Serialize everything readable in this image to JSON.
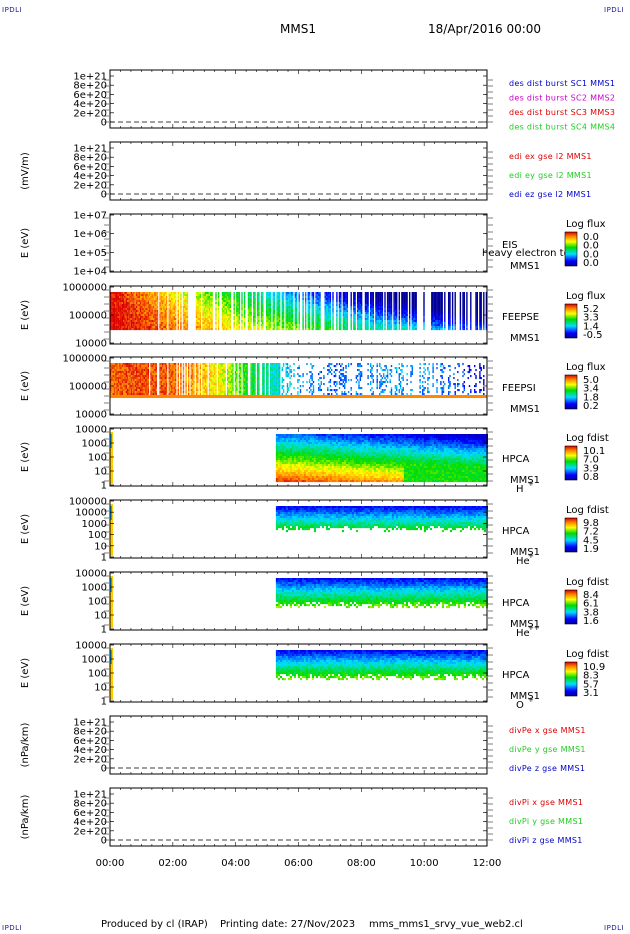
{
  "header": {
    "corner_label": "IPDLI",
    "spacecraft": "MMS1",
    "datetime": "18/Apr/2016 00:00"
  },
  "footer": {
    "produced_by": "Produced by cl (IRAP)",
    "printing_date": "Printing date: 27/Nov/2023",
    "filename": "mms_mms1_srvy_vue_web2.cl"
  },
  "colors": {
    "red": "#dd0000",
    "green": "#22cc22",
    "blue": "#0000cc",
    "magenta": "#cc00cc"
  },
  "chart_data": {
    "type": "heatmap",
    "x_ticks": [
      "00:00",
      "02:00",
      "04:00",
      "06:00",
      "08:00",
      "10:00",
      "12:00"
    ],
    "x_range_hours": [
      0,
      12
    ],
    "panels": [
      {
        "kind": "line",
        "ylabel": "",
        "yticks": [
          "1e+21",
          "8e+20",
          "6e+20",
          "4e+20",
          "2e+20",
          "0"
        ],
        "legend": [
          {
            "text": "des dist burst SC1 MMS1",
            "color": "#0000cc"
          },
          {
            "text": "des dist burst SC2 MMS2",
            "color": "#cc00cc"
          },
          {
            "text": "des dist burst SC3 MMS3",
            "color": "#dd0000"
          },
          {
            "text": "des dist burst SC4 MMS4",
            "color": "#22cc22"
          }
        ]
      },
      {
        "kind": "line",
        "ylabel": "(mV/m)",
        "yticks": [
          "1e+21",
          "8e+20",
          "6e+20",
          "4e+20",
          "2e+20",
          "0"
        ],
        "legend": [
          {
            "text": "edi ex gse l2 MMS1",
            "color": "#dd0000"
          },
          {
            "text": "edi ey gse l2 MMS1",
            "color": "#22cc22"
          },
          {
            "text": "edi ez gse l2 MMS1",
            "color": "#0000cc"
          }
        ]
      },
      {
        "kind": "empty_spec",
        "ylabel": "E (eV)",
        "yticks": [
          "1e+07",
          "1e+06",
          "1e+05",
          "1e+04"
        ],
        "instrument": "EIS",
        "sc": "MMS1",
        "extra": "heavy electron to",
        "cbar_title": "Log flux",
        "cbar_ticks": [
          "0.0",
          "0.0",
          "0.0",
          "0.0"
        ]
      },
      {
        "kind": "feeps",
        "ylabel": "E (eV)",
        "yticks": [
          "1000000",
          "100000",
          "10000"
        ],
        "instrument": "FEEPSE",
        "sc": "MMS1",
        "cbar_title": "Log flux",
        "cbar_ticks": [
          "5.2",
          "3.3",
          "1.4",
          "-0.5"
        ]
      },
      {
        "kind": "feeps",
        "ylabel": "E (eV)",
        "yticks": [
          "1000000",
          "100000",
          "10000"
        ],
        "instrument": "FEEPSI",
        "sc": "MMS1",
        "cbar_title": "Log flux",
        "cbar_ticks": [
          "5.0",
          "3.4",
          "1.8",
          "0.2"
        ]
      },
      {
        "kind": "hpca",
        "ylabel": "E (eV)",
        "yticks": [
          "10000",
          "1000",
          "100",
          "10",
          "1"
        ],
        "instrument": "HPCA",
        "sc": "MMS1",
        "species": "H",
        "charge": "+",
        "cbar_title": "Log fdist",
        "cbar_ticks": [
          "10.1",
          "7.0",
          "3.9",
          "0.8"
        ]
      },
      {
        "kind": "hpca",
        "ylabel": "E (eV)",
        "yticks": [
          "100000",
          "10000",
          "1000",
          "100",
          "10",
          "1"
        ],
        "instrument": "HPCA",
        "sc": "MMS1",
        "species": "He",
        "charge": "+",
        "cbar_title": "Log fdist",
        "cbar_ticks": [
          "9.8",
          "7.2",
          "4.5",
          "1.9"
        ]
      },
      {
        "kind": "hpca",
        "ylabel": "E (eV)",
        "yticks": [
          "10000",
          "1000",
          "100",
          "10",
          "1"
        ],
        "instrument": "HPCA",
        "sc": "MMS1",
        "species": "He",
        "charge": "++",
        "cbar_title": "Log fdist",
        "cbar_ticks": [
          "8.4",
          "6.1",
          "3.8",
          "1.6"
        ]
      },
      {
        "kind": "hpca",
        "ylabel": "E (eV)",
        "yticks": [
          "10000",
          "1000",
          "100",
          "10",
          "1"
        ],
        "instrument": "HPCA",
        "sc": "MMS1",
        "species": "O",
        "charge": "+",
        "cbar_title": "Log fdist",
        "cbar_ticks": [
          "10.9",
          "8.3",
          "5.7",
          "3.1"
        ]
      },
      {
        "kind": "line",
        "ylabel": "(nPa/km)",
        "yticks": [
          "1e+21",
          "8e+20",
          "6e+20",
          "4e+20",
          "2e+20",
          "0"
        ],
        "legend": [
          {
            "text": "divPe x gse MMS1",
            "color": "#dd0000"
          },
          {
            "text": "divPe y gse MMS1",
            "color": "#22cc22"
          },
          {
            "text": "divPe z gse MMS1",
            "color": "#0000cc"
          }
        ]
      },
      {
        "kind": "line",
        "ylabel": "(nPa/km)",
        "yticks": [
          "1e+21",
          "8e+20",
          "6e+20",
          "4e+20",
          "2e+20",
          "0"
        ],
        "legend": [
          {
            "text": "divPi x gse MMS1",
            "color": "#dd0000"
          },
          {
            "text": "divPi y gse MMS1",
            "color": "#22cc22"
          },
          {
            "text": "divPi z gse MMS1",
            "color": "#0000cc"
          }
        ]
      }
    ]
  }
}
